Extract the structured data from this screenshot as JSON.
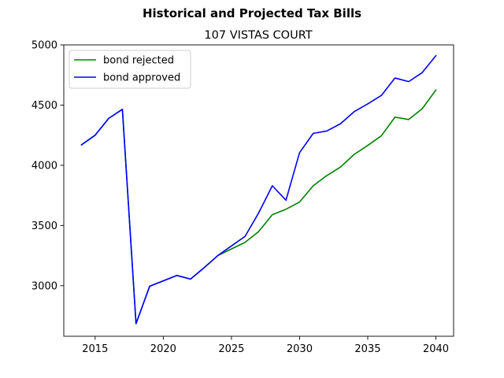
{
  "chart_data": {
    "type": "line",
    "suptitle": "Historical and Projected Tax Bills",
    "title": "107 VISTAS COURT",
    "xlabel": "",
    "ylabel": "",
    "x": [
      2014,
      2015,
      2016,
      2017,
      2018,
      2019,
      2020,
      2021,
      2022,
      2023,
      2024,
      2025,
      2026,
      2027,
      2028,
      2029,
      2030,
      2031,
      2032,
      2033,
      2034,
      2035,
      2036,
      2037,
      2038,
      2039,
      2040
    ],
    "xlim": [
      2012.7,
      2041.3
    ],
    "ylim": [
      2580,
      5000
    ],
    "xticks": [
      2015,
      2020,
      2025,
      2030,
      2035,
      2040
    ],
    "yticks": [
      3000,
      3500,
      4000,
      4500,
      5000
    ],
    "grid": false,
    "legend_position": "top-left",
    "series": [
      {
        "name": "bond rejected",
        "color": "#008000",
        "values": [
          4170,
          4250,
          4390,
          4465,
          2685,
          2995,
          3040,
          3085,
          3055,
          3150,
          3250,
          3305,
          3360,
          3450,
          3590,
          3635,
          3695,
          3830,
          3915,
          3985,
          4090,
          4165,
          4245,
          4400,
          4380,
          4470,
          4625
        ]
      },
      {
        "name": "bond approved",
        "color": "#0000ff",
        "values": [
          4170,
          4250,
          4390,
          4465,
          2685,
          2995,
          3040,
          3085,
          3055,
          3150,
          3250,
          3330,
          3410,
          3605,
          3830,
          3710,
          4105,
          4265,
          4285,
          4345,
          4445,
          4510,
          4580,
          4725,
          4695,
          4770,
          4910
        ]
      }
    ]
  }
}
